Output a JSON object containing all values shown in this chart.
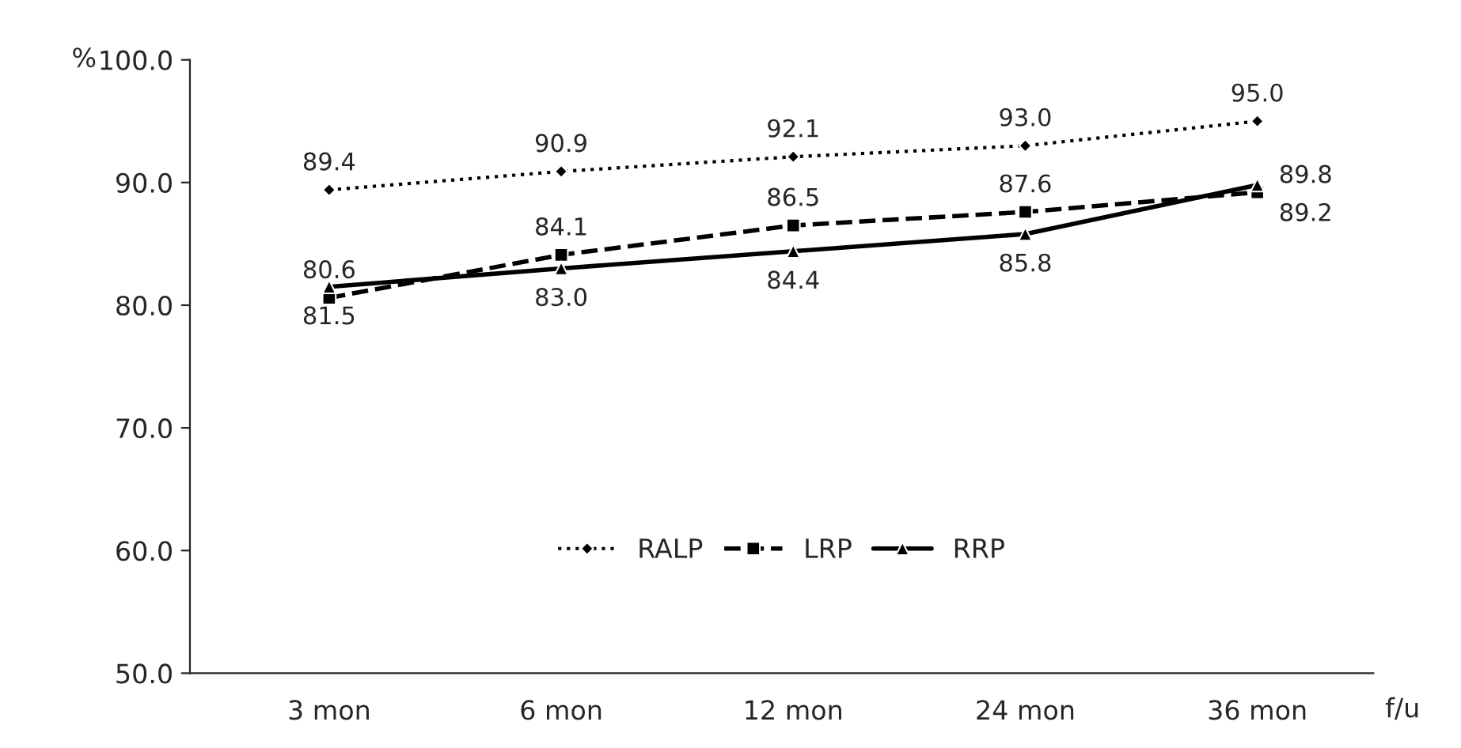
{
  "chart_data": {
    "type": "line",
    "xlabel": "f/u",
    "ylabel": "%",
    "categories": [
      "3 mon",
      "6 mon",
      "12 mon",
      "24 mon",
      "36 mon"
    ],
    "series": [
      {
        "name": "RALP",
        "color": "#000000",
        "marker": "diamond",
        "line_style": "dotted",
        "values": [
          89.4,
          90.9,
          92.1,
          93.0,
          95.0
        ],
        "value_labels": [
          "89.4",
          "90.9",
          "92.1",
          "93.0",
          "95.0"
        ]
      },
      {
        "name": "LRP",
        "color": "#000000",
        "marker": "square",
        "line_style": "dashed",
        "values": [
          80.6,
          84.1,
          86.5,
          87.6,
          89.2
        ],
        "value_labels": [
          "80.6",
          "84.1",
          "86.5",
          "87.6",
          "89.2"
        ]
      },
      {
        "name": "RRP",
        "color": "#000000",
        "marker": "triangle",
        "line_style": "solid",
        "values": [
          81.5,
          83.0,
          84.4,
          85.8,
          89.8
        ],
        "value_labels": [
          "81.5",
          "83.0",
          "84.4",
          "85.8",
          "89.8"
        ]
      }
    ],
    "ylim": [
      50,
      100
    ],
    "yticks": [
      {
        "value": 50,
        "label": "50.0"
      },
      {
        "value": 60,
        "label": "60.0"
      },
      {
        "value": 70,
        "label": "70.0"
      },
      {
        "value": 80,
        "label": "80.0"
      },
      {
        "value": 90,
        "label": "90.0"
      },
      {
        "value": 100,
        "label": "100.0"
      }
    ],
    "grid": false,
    "legend": "bottom"
  }
}
